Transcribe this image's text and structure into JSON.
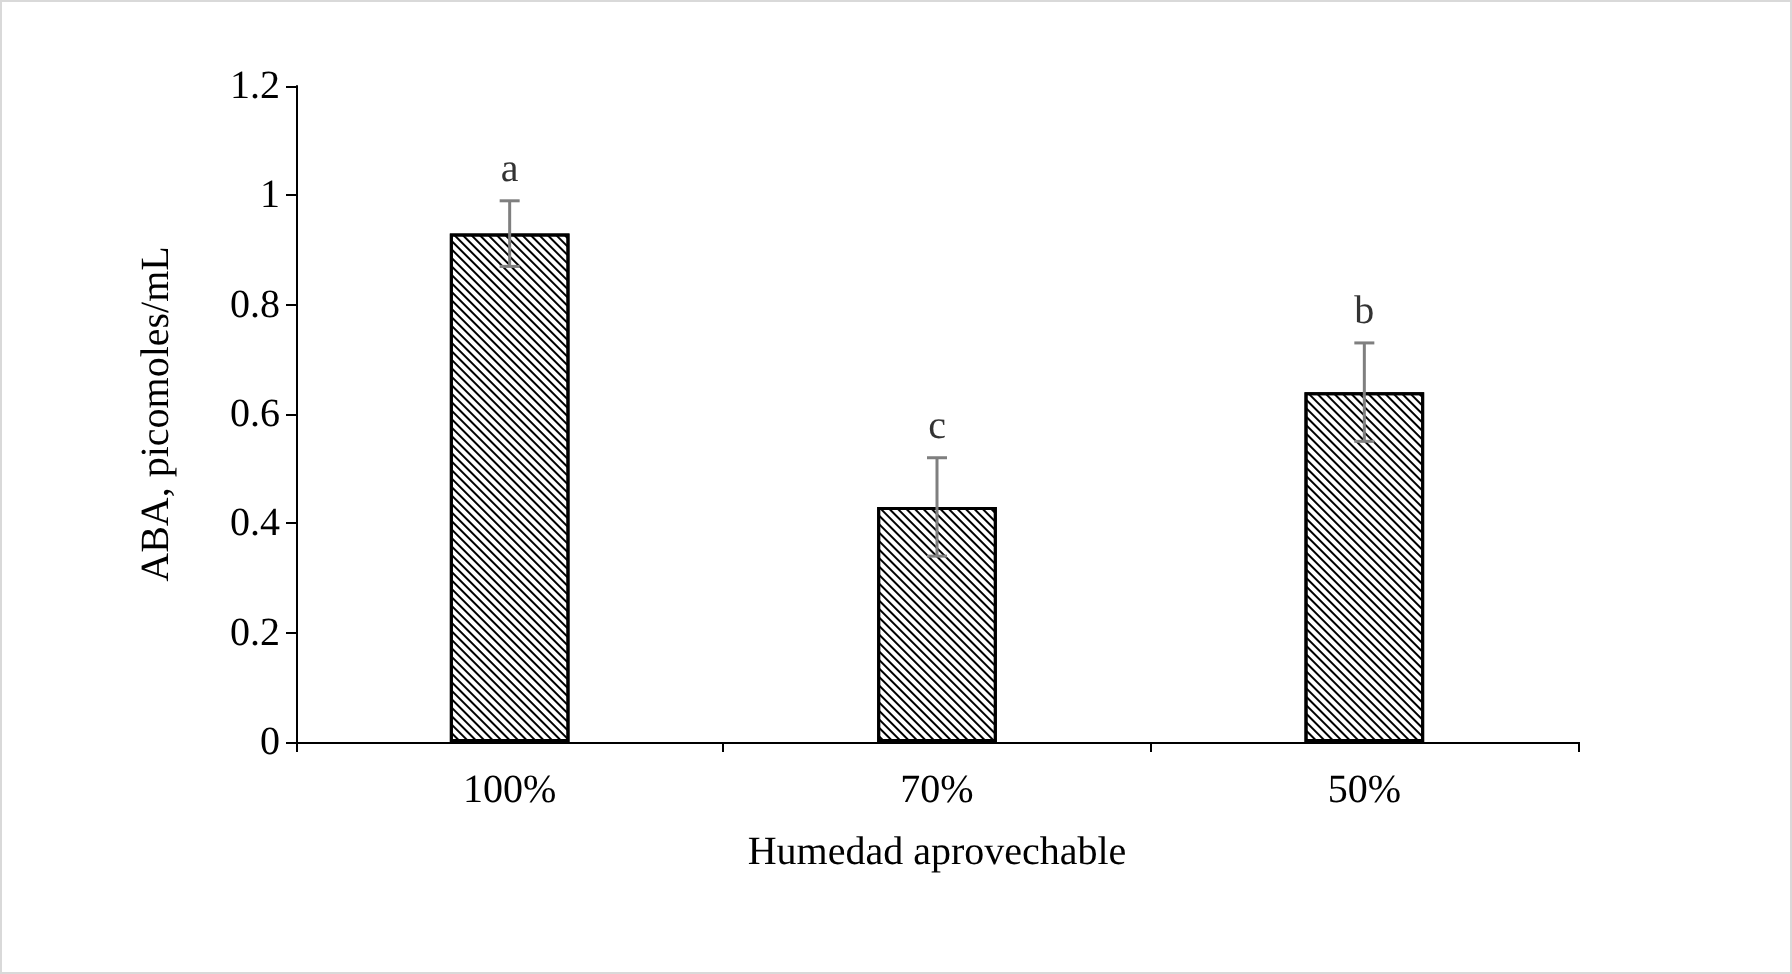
{
  "chart_data": {
    "type": "bar",
    "xlabel": "Humedad aprovechable",
    "ylabel": "ABA, picomoles/mL",
    "categories": [
      "100%",
      "70%",
      "50%"
    ],
    "values": [
      0.93,
      0.43,
      0.64
    ],
    "errors": [
      0.06,
      0.09,
      0.09
    ],
    "color": "#000000",
    "ylim": [
      0,
      1.2
    ],
    "yticks": [
      0,
      0.2,
      0.4,
      0.6,
      0.8,
      1,
      1.2
    ],
    "grid": false,
    "annotations": [
      {
        "text": "a",
        "x": "100%",
        "y": 0.99
      },
      {
        "text": "c",
        "x": "70%",
        "y": 0.52
      },
      {
        "text": "b",
        "x": "50%",
        "y": 0.73
      }
    ]
  }
}
